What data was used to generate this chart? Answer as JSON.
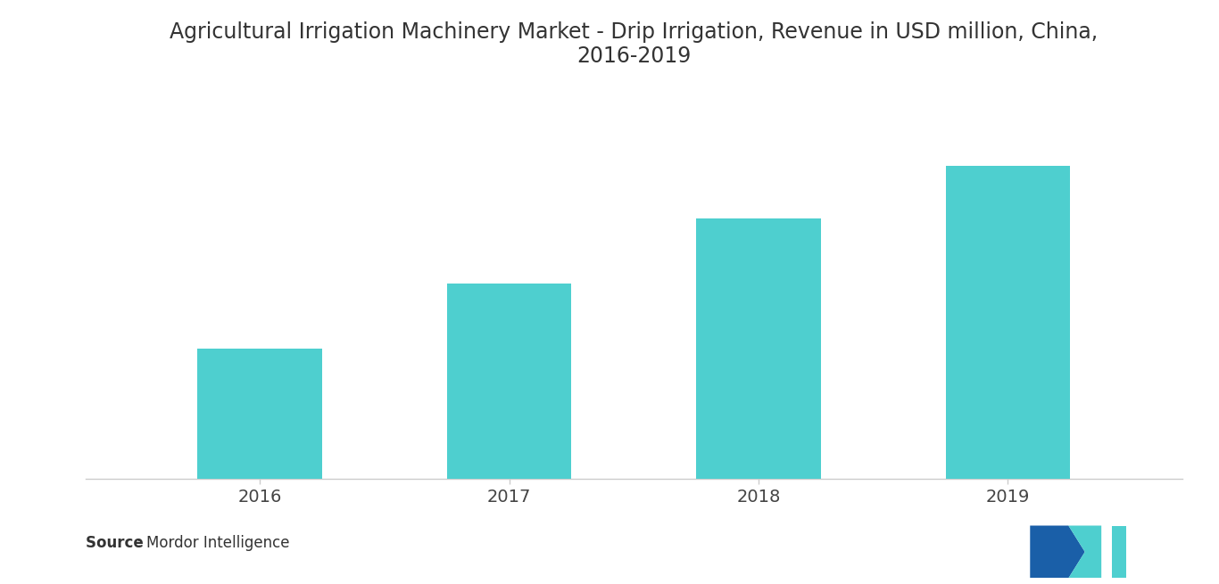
{
  "title": "Agricultural Irrigation Machinery Market - Drip Irrigation, Revenue in USD million, China,\n2016-2019",
  "categories": [
    "2016",
    "2017",
    "2018",
    "2019"
  ],
  "values": [
    30,
    45,
    60,
    72
  ],
  "bar_color": "#4ECFCF",
  "background_color": "#ffffff",
  "title_fontsize": 17,
  "tick_fontsize": 14,
  "ylim": [
    0,
    90
  ],
  "bar_width": 0.5,
  "spine_color": "#cccccc",
  "source_bold": "Source ",
  "source_normal": ": Mordor Intelligence",
  "source_fontsize": 12,
  "logo_color_blue": "#1a5fa8",
  "logo_color_teal": "#4ECFCF"
}
